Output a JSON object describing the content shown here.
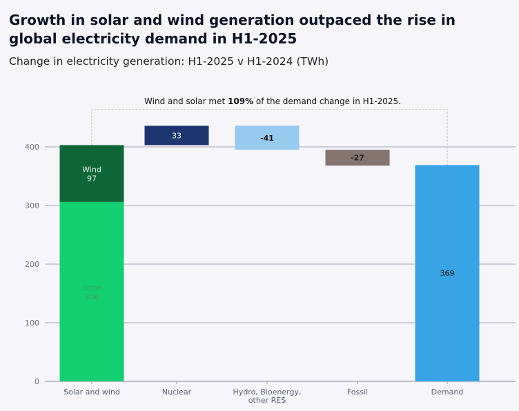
{
  "title": "Growth in solar and wind generation outpaced the rise in global electricity demand in H1-2025",
  "subtitle": "Change in electricity generation: H1-2025 v H1-2024 (TWh)",
  "chart_data": {
    "type": "bar",
    "subtype": "waterfall",
    "title": "Growth in solar and wind generation outpaced the rise in global electricity demand in H1-2025",
    "subtitle": "Change in electricity generation: H1-2025 v H1-2024 (TWh)",
    "xlabel": "",
    "ylabel": "",
    "ylim": [
      0,
      400
    ],
    "yticks": [
      0,
      100,
      200,
      300,
      400
    ],
    "grid": true,
    "categories": [
      "Solar and wind",
      "Nuclear",
      "Hydro, Bioenergy, other RES",
      "Fossil",
      "Demand"
    ],
    "category_lines": [
      [
        "Solar and wind"
      ],
      [
        "Nuclear"
      ],
      [
        "Hydro, Bioenergy,",
        "other RES"
      ],
      [
        "Fossil"
      ],
      [
        "Demand"
      ]
    ],
    "bars": [
      {
        "category": "Solar and wind",
        "segment": "Solar",
        "start": 0,
        "value": 306,
        "label": "Solar",
        "value_label": "306",
        "color": "#12cf6f",
        "text_color": "#3aa06a"
      },
      {
        "category": "Solar and wind",
        "segment": "Wind",
        "start": 306,
        "value": 97,
        "label": "Wind",
        "value_label": "97",
        "color": "#0e6637",
        "text_color": "#e8f5ec"
      },
      {
        "category": "Nuclear",
        "start": 403,
        "value": 33,
        "value_label": "33",
        "color": "#1e3670",
        "text_color": "#ffffff"
      },
      {
        "category": "Hydro, Bioenergy, other RES",
        "start": 436,
        "value": -41,
        "value_label": "-41",
        "color": "#96caee",
        "text_color": "#111111"
      },
      {
        "category": "Fossil",
        "start": 395,
        "value": -27,
        "value_label": "-27",
        "color": "#857470",
        "text_color": "#222222"
      },
      {
        "category": "Demand",
        "start": 0,
        "value": 369,
        "value_label": "369",
        "color": "#38a4e6",
        "text_color": "#111111"
      }
    ],
    "annotation": {
      "prefix": "Wind and solar met ",
      "bold": "109%",
      "suffix": " of the demand change in H1-2025.",
      "from": "Solar and wind",
      "to": "Demand"
    }
  }
}
